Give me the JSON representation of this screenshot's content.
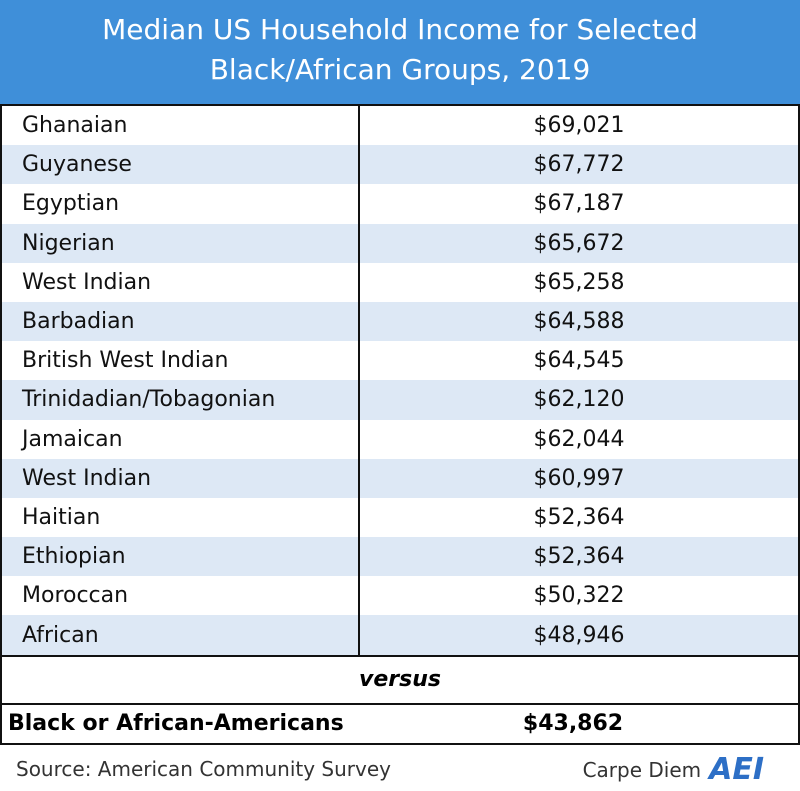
{
  "header": {
    "title_lines": [
      "Median US Household Income for Selected",
      "Black/African Groups, 2019"
    ]
  },
  "table": {
    "rows": [
      [
        "Ghanaian",
        "$69,021"
      ],
      [
        "Guyanese",
        "$67,772"
      ],
      [
        "Egyptian",
        "$67,187"
      ],
      [
        "Nigerian",
        "$65,672"
      ],
      [
        "West Indian",
        "$65,258"
      ],
      [
        "Barbadian",
        "$64,588"
      ],
      [
        "British West Indian",
        "$64,545"
      ],
      [
        "Trinidadian/Tobagonian",
        "$62,120"
      ],
      [
        "Jamaican",
        "$62,044"
      ],
      [
        "West Indian",
        "$60,997"
      ],
      [
        "Haitian",
        "$52,364"
      ],
      [
        "Ethiopian",
        "$52,364"
      ],
      [
        "Moroccan",
        "$50,322"
      ],
      [
        "African",
        "$48,946"
      ]
    ],
    "versus": "versus",
    "total": [
      "Black or African-Americans",
      "$43,862"
    ]
  },
  "footer": {
    "source": "Source: American Community Survey",
    "brand": "Carpe Diem",
    "logo": "AEI"
  }
}
